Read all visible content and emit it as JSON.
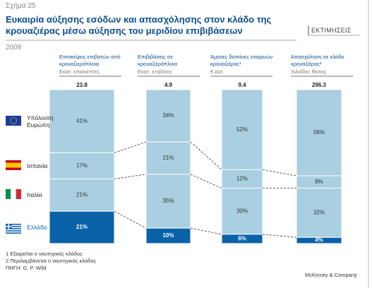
{
  "figure_label": "Σχήμα 25",
  "stamp": "ΕΚΤΙΜΗΣΕΙΣ",
  "chart_data": {
    "type": "stacked_bar_100",
    "title": "Ευκαιρία αύξησης εσόδων και απασχόλησης στον κλάδο της κρουαζιέρας μέσω αύξησης του μεριδίου επιβιβάσεων",
    "subtitle": "2009",
    "categories": [
      "Επισκέψεις επιβατών από κρουαζιερόπλοια",
      "Επιβιβάσεις σε κρουαζιερόπλοια",
      "Άμεσες δαπάνες εταιρειών κρουαζιέρας¹",
      "Απασχόληση σε κλάδο κρουαζιέρας²"
    ],
    "units": [
      "Εκατ. επισκέπτες",
      "Εκατ. επιβάτες",
      "€ Δισ.",
      "Χιλιάδες θέσεις"
    ],
    "totals": [
      23.8,
      4.9,
      9.4,
      296.3
    ],
    "series": [
      {
        "name": "Υπόλοιπη Ευρώπη",
        "color": "#a9cfe0",
        "values": [
          41,
          34,
          52,
          56
        ],
        "value_labels": [
          "41%",
          "34%",
          "52%",
          "56%"
        ]
      },
      {
        "name": "Ισπανία",
        "color": "#a9cfe0",
        "values": [
          17,
          21,
          12,
          8
        ],
        "value_labels": [
          "17%",
          "21%",
          "12%",
          "8%"
        ]
      },
      {
        "name": "Ιταλία",
        "color": "#a9cfe0",
        "values": [
          21,
          35,
          30,
          32
        ],
        "value_labels": [
          "21%",
          "35%",
          "30%",
          "32%"
        ]
      },
      {
        "name": "Ελλάδα",
        "color": "#0a63a8",
        "values": [
          21,
          10,
          6,
          4
        ],
        "value_labels": [
          "21%",
          "10%",
          "6%",
          "4%"
        ]
      }
    ]
  },
  "footnotes": [
    "1 Εξαιρείται ο ναυτηγικός κλάδος",
    "2 Περιλαμβάνεται ο ναυτηγικός κλάδος",
    "ΠΗΓΗ: G. P. Wild"
  ],
  "brand": "McKinsey & Company"
}
